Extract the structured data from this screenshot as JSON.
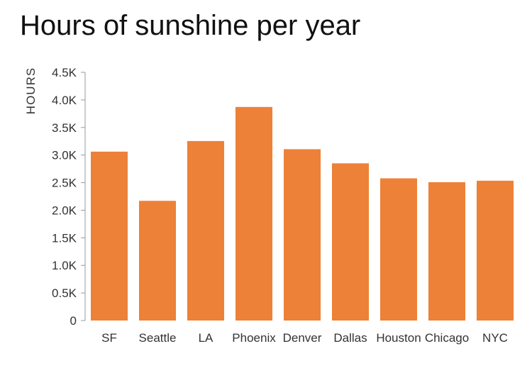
{
  "chart_data": {
    "type": "bar",
    "title": "Hours of sunshine per year",
    "xlabel": "",
    "ylabel": "HOURS",
    "categories": [
      "SF",
      "Seattle",
      "LA",
      "Phoenix",
      "Denver",
      "Dallas",
      "Houston",
      "Chicago",
      "NYC"
    ],
    "values": [
      3062,
      2170,
      3254,
      3872,
      3106,
      2850,
      2578,
      2508,
      2535
    ],
    "ylim": [
      0,
      4500
    ],
    "yticks": [
      0,
      500,
      1000,
      1500,
      2000,
      2500,
      3000,
      3500,
      4000,
      4500
    ],
    "ytick_labels": [
      "0",
      "0.5K",
      "1.0K",
      "1.5K",
      "2.0K",
      "2.5K",
      "3.0K",
      "3.5K",
      "4.0K",
      "4.5K"
    ],
    "grid": false,
    "bar_color": "#ED8137",
    "axis_color": "#999999"
  }
}
